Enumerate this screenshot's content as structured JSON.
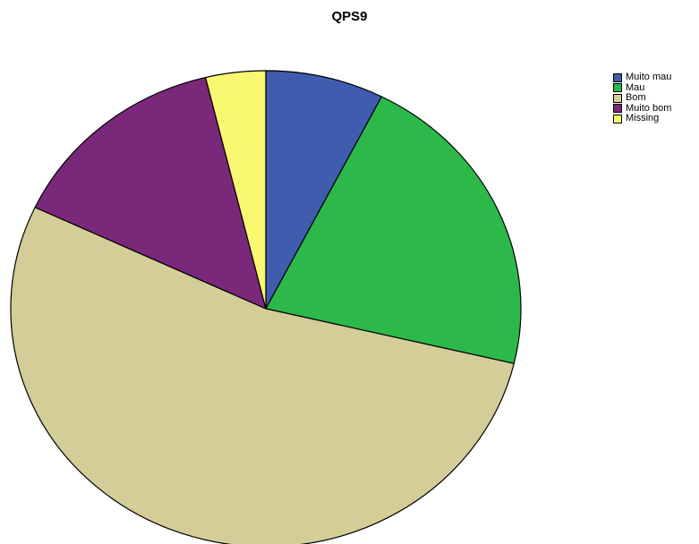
{
  "chart_data": {
    "type": "pie",
    "title": "QPS9",
    "categories": [
      "Muito mau",
      "Mau",
      "Bom",
      "Muito bom",
      "Missing"
    ],
    "values": [
      7.5,
      21.2,
      53.3,
      14.2,
      3.8
    ],
    "unit": "percent (estimated)",
    "start_angle_deg": 0,
    "direction": "clockwise",
    "colors": [
      "#3f5cae",
      "#2db84a",
      "#d4cd98",
      "#7a2879",
      "#f9f871"
    ],
    "legend_position": "top-right",
    "slice_border_color": "#000000"
  }
}
